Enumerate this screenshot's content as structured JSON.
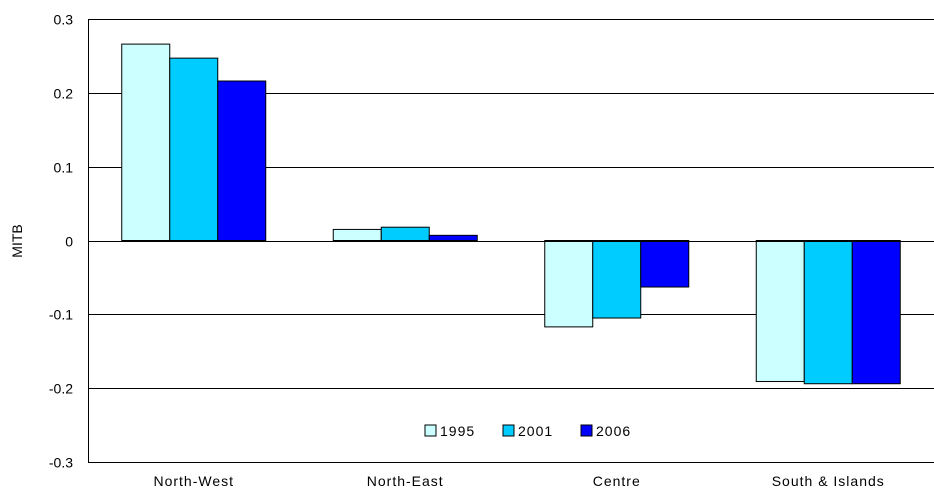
{
  "chart_data": {
    "type": "bar",
    "ylabel": "MITB",
    "ylim": [
      -0.3,
      0.3
    ],
    "yticks": [
      {
        "value": 0.3,
        "label": "0.3"
      },
      {
        "value": 0.2,
        "label": "0.2"
      },
      {
        "value": 0.1,
        "label": "0.1"
      },
      {
        "value": 0,
        "label": "0"
      },
      {
        "value": -0.1,
        "label": "-0.1"
      },
      {
        "value": -0.2,
        "label": "-0.2"
      },
      {
        "value": -0.3,
        "label": "-0.3"
      }
    ],
    "grid": true,
    "legend_position": "bottom-center",
    "categories": [
      "North-West",
      "North-East",
      "Centre",
      "South & Islands"
    ],
    "series": [
      {
        "name": "1995",
        "color": "#CCFFFF",
        "values": [
          0.266,
          0.015,
          -0.117,
          -0.191
        ]
      },
      {
        "name": "2001",
        "color": "#00CCFF",
        "values": [
          0.247,
          0.018,
          -0.105,
          -0.194
        ]
      },
      {
        "name": "2006",
        "color": "#0000FF",
        "values": [
          0.216,
          0.007,
          -0.063,
          -0.194
        ]
      }
    ]
  }
}
